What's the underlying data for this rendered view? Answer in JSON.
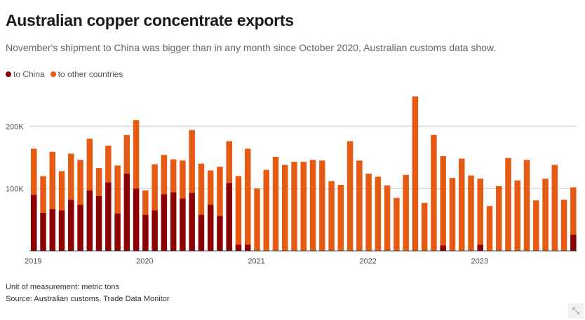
{
  "header": {
    "title": "Australian copper concentrate exports",
    "subtitle": "November's shipment to China was bigger than in any month since October 2020, Australian customs data show."
  },
  "legend": [
    {
      "label": "to China",
      "color": "#8b0000"
    },
    {
      "label": "to other countries",
      "color": "#e55b13"
    }
  ],
  "footer": {
    "unit": "Unit of measurement: metric tons",
    "source": "Source: Australian customs, Trade Data Monitor"
  },
  "expand_icon": "expand-diagonal-arrows-icon",
  "chart_data": {
    "type": "bar",
    "stacked": true,
    "title": "Australian copper concentrate exports",
    "xlabel": "",
    "ylabel": "metric tons",
    "ylim": [
      0,
      250000
    ],
    "yticks": [
      100000,
      200000
    ],
    "ytick_labels": [
      "100K",
      "200K"
    ],
    "xtick_labels": [
      "2019",
      "2020",
      "2021",
      "2022",
      "2023"
    ],
    "xtick_indices": [
      0,
      12,
      24,
      36,
      48
    ],
    "grid": true,
    "legend_position": "top-left",
    "categories": [
      "2019-01",
      "2019-02",
      "2019-03",
      "2019-04",
      "2019-05",
      "2019-06",
      "2019-07",
      "2019-08",
      "2019-09",
      "2019-10",
      "2019-11",
      "2019-12",
      "2020-01",
      "2020-02",
      "2020-03",
      "2020-04",
      "2020-05",
      "2020-06",
      "2020-07",
      "2020-08",
      "2020-09",
      "2020-10",
      "2020-11",
      "2020-12",
      "2021-01",
      "2021-02",
      "2021-03",
      "2021-04",
      "2021-05",
      "2021-06",
      "2021-07",
      "2021-08",
      "2021-09",
      "2021-10",
      "2021-11",
      "2021-12",
      "2022-01",
      "2022-02",
      "2022-03",
      "2022-04",
      "2022-05",
      "2022-06",
      "2022-07",
      "2022-08",
      "2022-09",
      "2022-10",
      "2022-11",
      "2022-12",
      "2023-01",
      "2023-02",
      "2023-03",
      "2023-04",
      "2023-05",
      "2023-06",
      "2023-07",
      "2023-08",
      "2023-09",
      "2023-10",
      "2023-11"
    ],
    "series": [
      {
        "name": "to China",
        "color": "#8b0000",
        "values": [
          90000,
          61000,
          67000,
          65000,
          82000,
          74000,
          97000,
          88000,
          110000,
          60000,
          124000,
          100000,
          58000,
          65000,
          91000,
          94000,
          84000,
          93000,
          58000,
          74000,
          56000,
          109000,
          10000,
          10000,
          0,
          0,
          0,
          0,
          0,
          0,
          0,
          0,
          0,
          0,
          0,
          0,
          0,
          0,
          0,
          0,
          0,
          0,
          0,
          0,
          9000,
          0,
          0,
          0,
          10000,
          0,
          0,
          0,
          0,
          0,
          0,
          0,
          0,
          0,
          26000
        ]
      },
      {
        "name": "to other countries",
        "color": "#e55b13",
        "values": [
          74000,
          59000,
          92000,
          63000,
          74000,
          72000,
          83000,
          45000,
          59000,
          77000,
          62000,
          110000,
          39000,
          74000,
          63000,
          53000,
          61000,
          101000,
          82000,
          55000,
          79000,
          67000,
          110000,
          154000,
          100000,
          130000,
          151000,
          138000,
          143000,
          143000,
          146000,
          145000,
          112000,
          106000,
          176000,
          145000,
          124000,
          119000,
          105000,
          85000,
          122000,
          248000,
          77000,
          186000,
          143000,
          117000,
          148000,
          121000,
          106000,
          72000,
          104000,
          149000,
          113000,
          146000,
          81000,
          116000,
          138000,
          82000,
          76000
        ]
      }
    ]
  }
}
